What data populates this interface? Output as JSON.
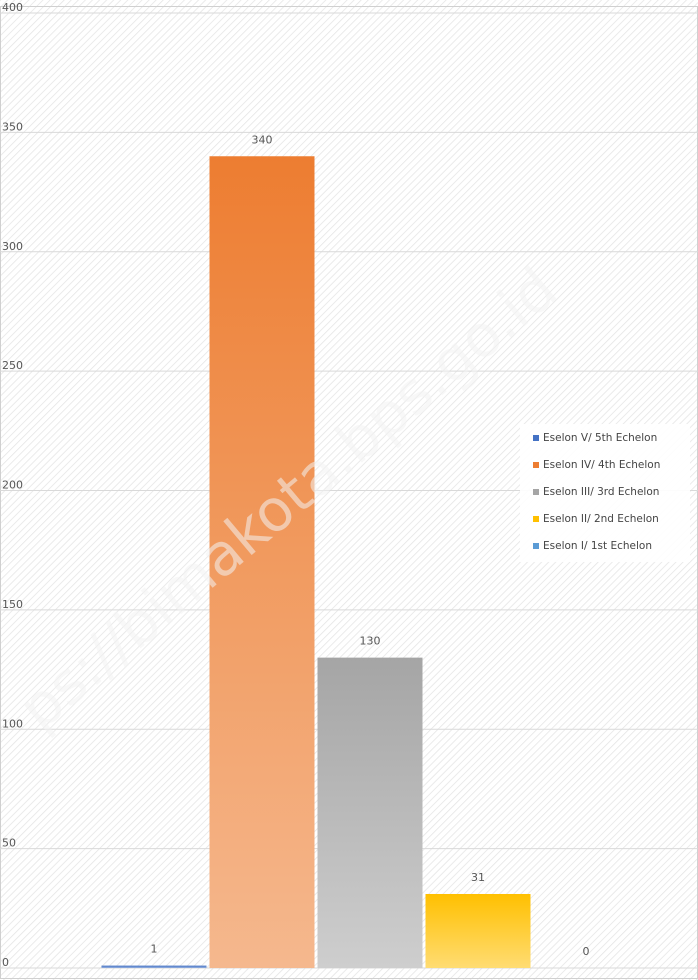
{
  "chart_data": {
    "type": "bar",
    "categories": [
      null
    ],
    "series": [
      {
        "name": "Eselon V/ 5th Echelon",
        "color": "#4472c4",
        "values": [
          1
        ]
      },
      {
        "name": "Eselon IV/ 4th Echelon",
        "color": "#ed7d31",
        "values": [
          340
        ]
      },
      {
        "name": "Eselon III/ 3rd Echelon",
        "color": "#a5a5a5",
        "values": [
          130
        ]
      },
      {
        "name": "Eselon II/ 2nd Echelon",
        "color": "#ffc000",
        "values": [
          31
        ]
      },
      {
        "name": "Eselon I/ 1st Echelon",
        "color": "#5b9bd5",
        "values": [
          0
        ]
      }
    ],
    "ylim": [
      0,
      400
    ],
    "yticks": [
      0,
      50,
      100,
      150,
      200,
      250,
      300,
      350,
      400
    ],
    "grid": true,
    "legend": "right",
    "watermark": "ps://bimakota.bps.go.id"
  }
}
